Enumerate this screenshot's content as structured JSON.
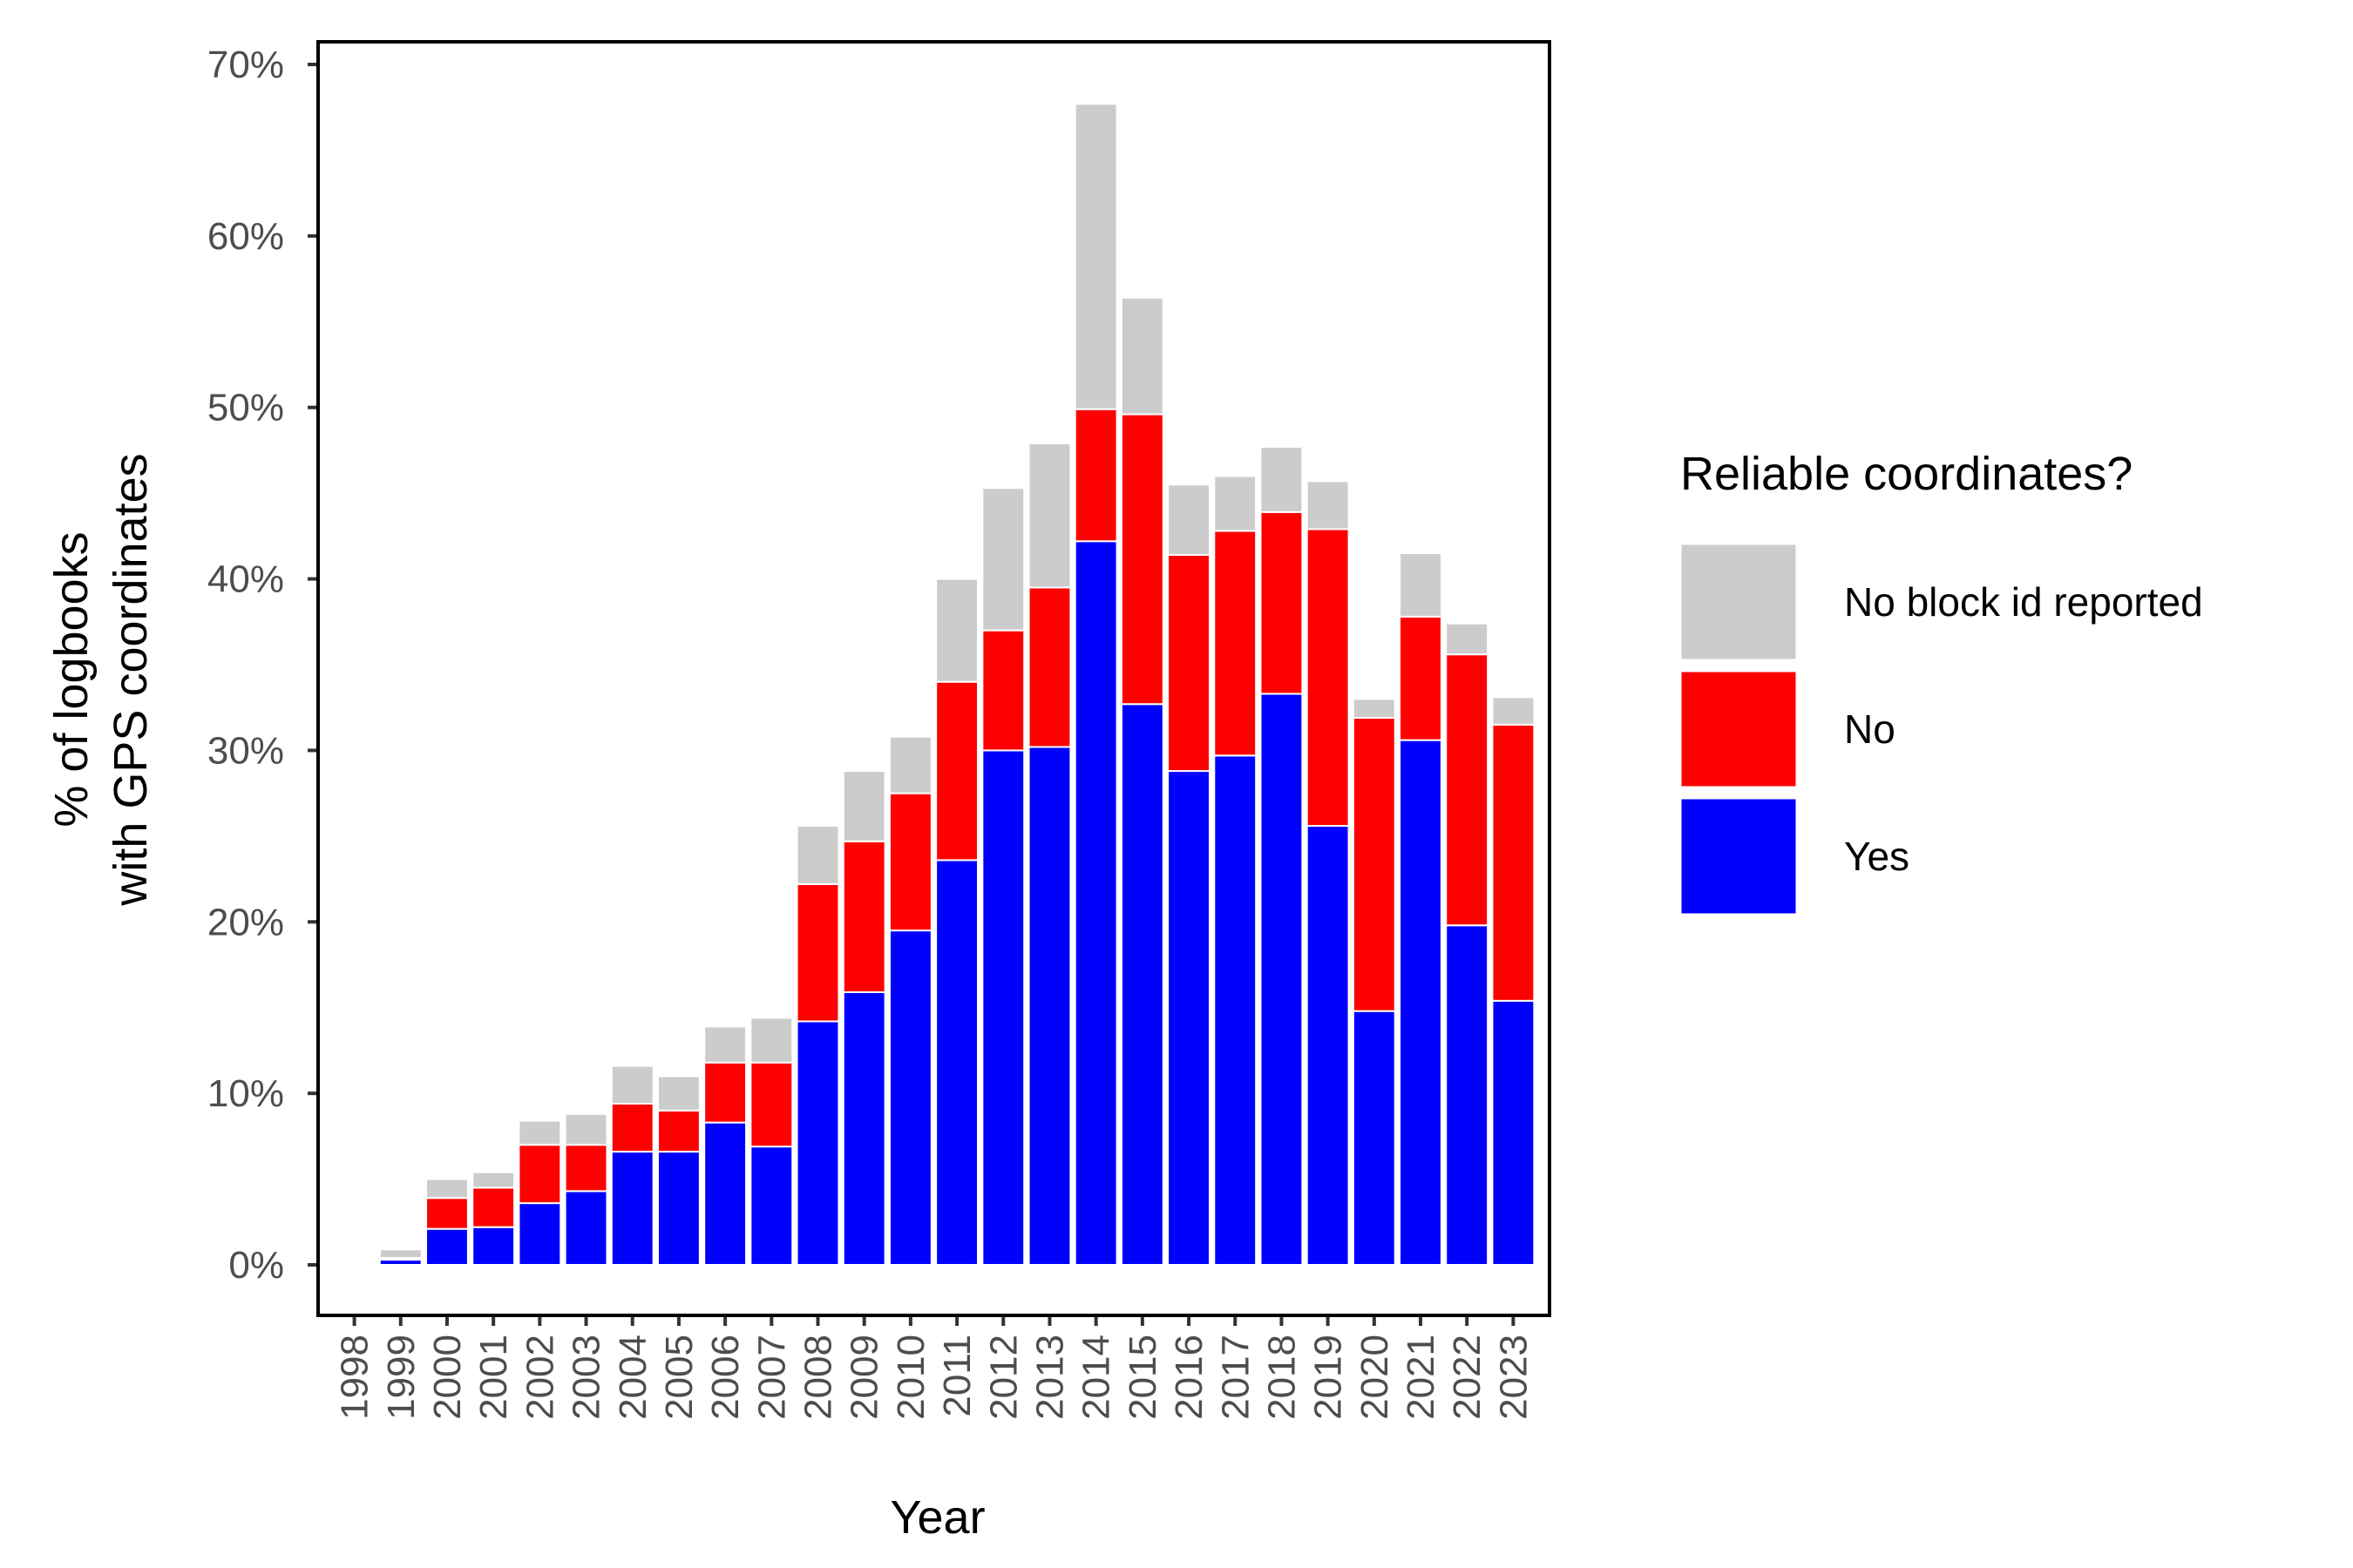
{
  "chart_data": {
    "type": "bar",
    "stacked": true,
    "title": "",
    "xlabel": "Year",
    "ylabel_lines": [
      "% of logbooks",
      "with GPS coordinates"
    ],
    "ylim": [
      0,
      70
    ],
    "y_ticks": [
      0,
      10,
      20,
      30,
      40,
      50,
      60,
      70
    ],
    "y_tick_labels": [
      "0%",
      "10%",
      "20%",
      "30%",
      "40%",
      "50%",
      "60%",
      "70%"
    ],
    "grid": false,
    "legend_position": "right",
    "categories": [
      "1998",
      "1999",
      "2000",
      "2001",
      "2002",
      "2003",
      "2004",
      "2005",
      "2006",
      "2007",
      "2008",
      "2009",
      "2010",
      "2011",
      "2012",
      "2013",
      "2014",
      "2015",
      "2016",
      "2017",
      "2018",
      "2019",
      "2020",
      "2021",
      "2022",
      "2023"
    ],
    "series": [
      {
        "name": "Yes",
        "color": "#0000ff",
        "values": [
          0.1,
          0.3,
          2.1,
          2.2,
          3.6,
          4.3,
          6.6,
          6.6,
          8.3,
          6.9,
          14.2,
          15.9,
          19.5,
          23.6,
          30.0,
          30.2,
          42.2,
          32.7,
          28.8,
          29.7,
          33.3,
          25.6,
          14.8,
          30.6,
          19.8,
          15.4
        ]
      },
      {
        "name": "No",
        "color": "#ff0000",
        "values": [
          0.1,
          0.1,
          1.8,
          2.3,
          3.4,
          2.7,
          2.8,
          2.4,
          3.5,
          4.9,
          8.0,
          8.8,
          8.0,
          10.4,
          7.0,
          9.3,
          7.7,
          16.9,
          12.6,
          13.1,
          10.6,
          17.3,
          17.1,
          7.2,
          15.8,
          16.1
        ]
      },
      {
        "name": "No block id reported",
        "color": "#cccccc",
        "values": [
          0.0,
          0.5,
          1.1,
          0.9,
          1.4,
          1.8,
          2.2,
          2.0,
          2.1,
          2.6,
          3.4,
          4.1,
          3.3,
          6.0,
          8.3,
          8.4,
          17.8,
          6.8,
          4.1,
          3.2,
          3.8,
          2.8,
          1.1,
          3.7,
          1.8,
          1.6
        ]
      }
    ],
    "legend": {
      "title": "Reliable coordinates?",
      "order": [
        "No block id reported",
        "No",
        "Yes"
      ]
    }
  }
}
